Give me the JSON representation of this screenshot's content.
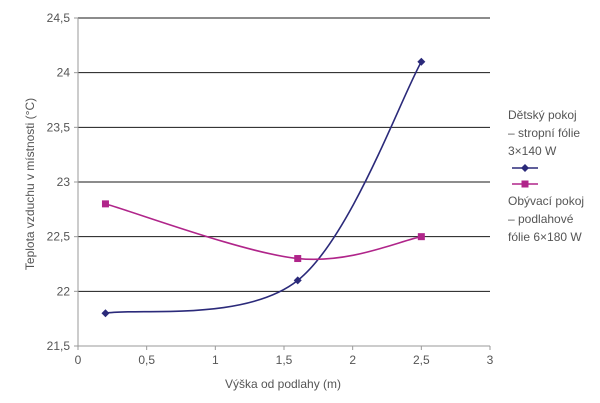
{
  "chart_data": {
    "type": "line",
    "title": "",
    "xlabel": "Výška od podlahy (m)",
    "ylabel": "Teplota vzduchu v místnosti (°C)",
    "xlim": [
      0,
      3
    ],
    "ylim": [
      21.5,
      24.5
    ],
    "x_ticks": [
      "0",
      "0,5",
      "1",
      "1,5",
      "2",
      "2,5",
      "3"
    ],
    "y_ticks": [
      "21,5",
      "22",
      "22,5",
      "23",
      "23,5",
      "24",
      "24,5"
    ],
    "grid": "horizontal",
    "legend_position": "right",
    "series": [
      {
        "name": "Dětský pokoj\n– stropní fólie\n3×140 W",
        "color": "#2b2a7a",
        "marker": "diamond",
        "smooth": true,
        "points": [
          [
            0.2,
            21.8
          ],
          [
            1.6,
            22.1
          ],
          [
            2.5,
            24.1
          ]
        ]
      },
      {
        "name": "Obývací pokoj\n– podlahové\nfólie 6×180 W",
        "color": "#b0258a",
        "marker": "square",
        "smooth": true,
        "points": [
          [
            0.2,
            22.8
          ],
          [
            1.6,
            22.3
          ],
          [
            2.5,
            22.5
          ]
        ]
      }
    ]
  }
}
